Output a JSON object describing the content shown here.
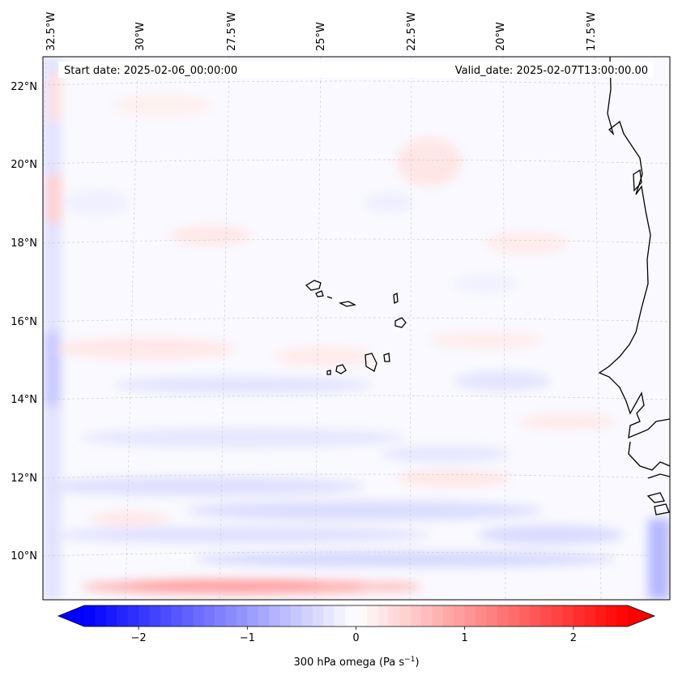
{
  "map": {
    "start_label": "Start date: 2025-02-06_00:00:00",
    "valid_label": "Valid_date: 2025-02-07T13:00:00.00",
    "lon_labels": [
      "32.5°W",
      "30°W",
      "27.5°W",
      "25°W",
      "22.5°W",
      "20°W",
      "17.5°W"
    ],
    "lat_labels": [
      "22°N",
      "20°N",
      "18°N",
      "16°N",
      "14°N",
      "12°N",
      "10°N"
    ],
    "field": "300 hPa omega",
    "region": "Cape Verde / West Africa coast"
  },
  "colorbar": {
    "label_main": "300 hPa omega (Pa s",
    "label_sup": "−1",
    "label_end": ")",
    "ticks": [
      "−2",
      "−1",
      "0",
      "1",
      "2"
    ],
    "tick_values": [
      -2,
      -1,
      0,
      1,
      2
    ],
    "range": [
      -2.5,
      2.5
    ],
    "colormap": "bwr",
    "low_color": "#0000ff",
    "mid_color": "#ffffff",
    "high_color": "#ff0000"
  }
}
